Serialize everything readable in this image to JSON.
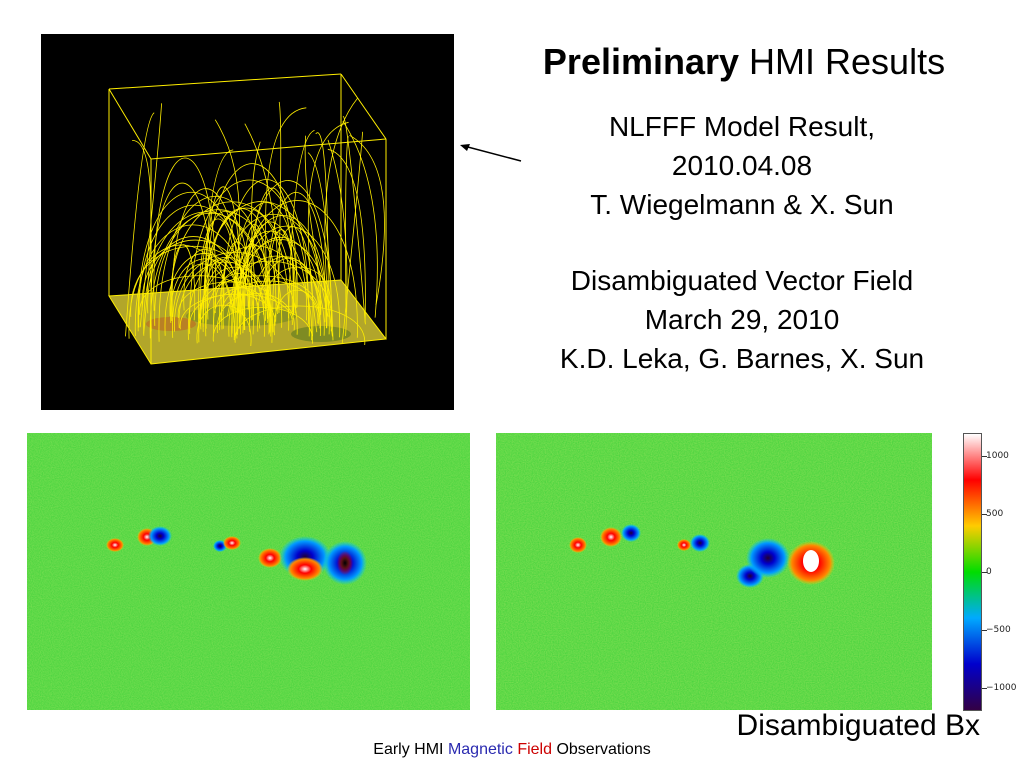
{
  "slide": {
    "title_bold": "Preliminary",
    "title_rest": " HMI Results",
    "nlfff_block": {
      "line1": "NLFFF Model Result,",
      "line2": "2010.04.08",
      "line3": "T. Wiegelmann & X. Sun"
    },
    "vector_block": {
      "line1": "Disambiguated Vector Field",
      "line2": "March 29, 2010",
      "line3": "K.D. Leka, G. Barnes, X. Sun"
    },
    "caption": "Disambiguated Bx",
    "footer": {
      "part1": "Early HMI ",
      "part2": "Magnetic",
      "part3": " ",
      "part4": "Field",
      "part5": " Observations"
    }
  },
  "colorbar": {
    "ticks": [
      "1000",
      "500",
      "0",
      "−500",
      "−1000"
    ],
    "colors": [
      "#ffffff",
      "#ff0000",
      "#ffcc00",
      "#00dd00",
      "#00aaff",
      "#0000cc",
      "#330044"
    ]
  },
  "figure_colors": {
    "cube_lines": "#ffee00",
    "map_background": "#3fd13a"
  }
}
